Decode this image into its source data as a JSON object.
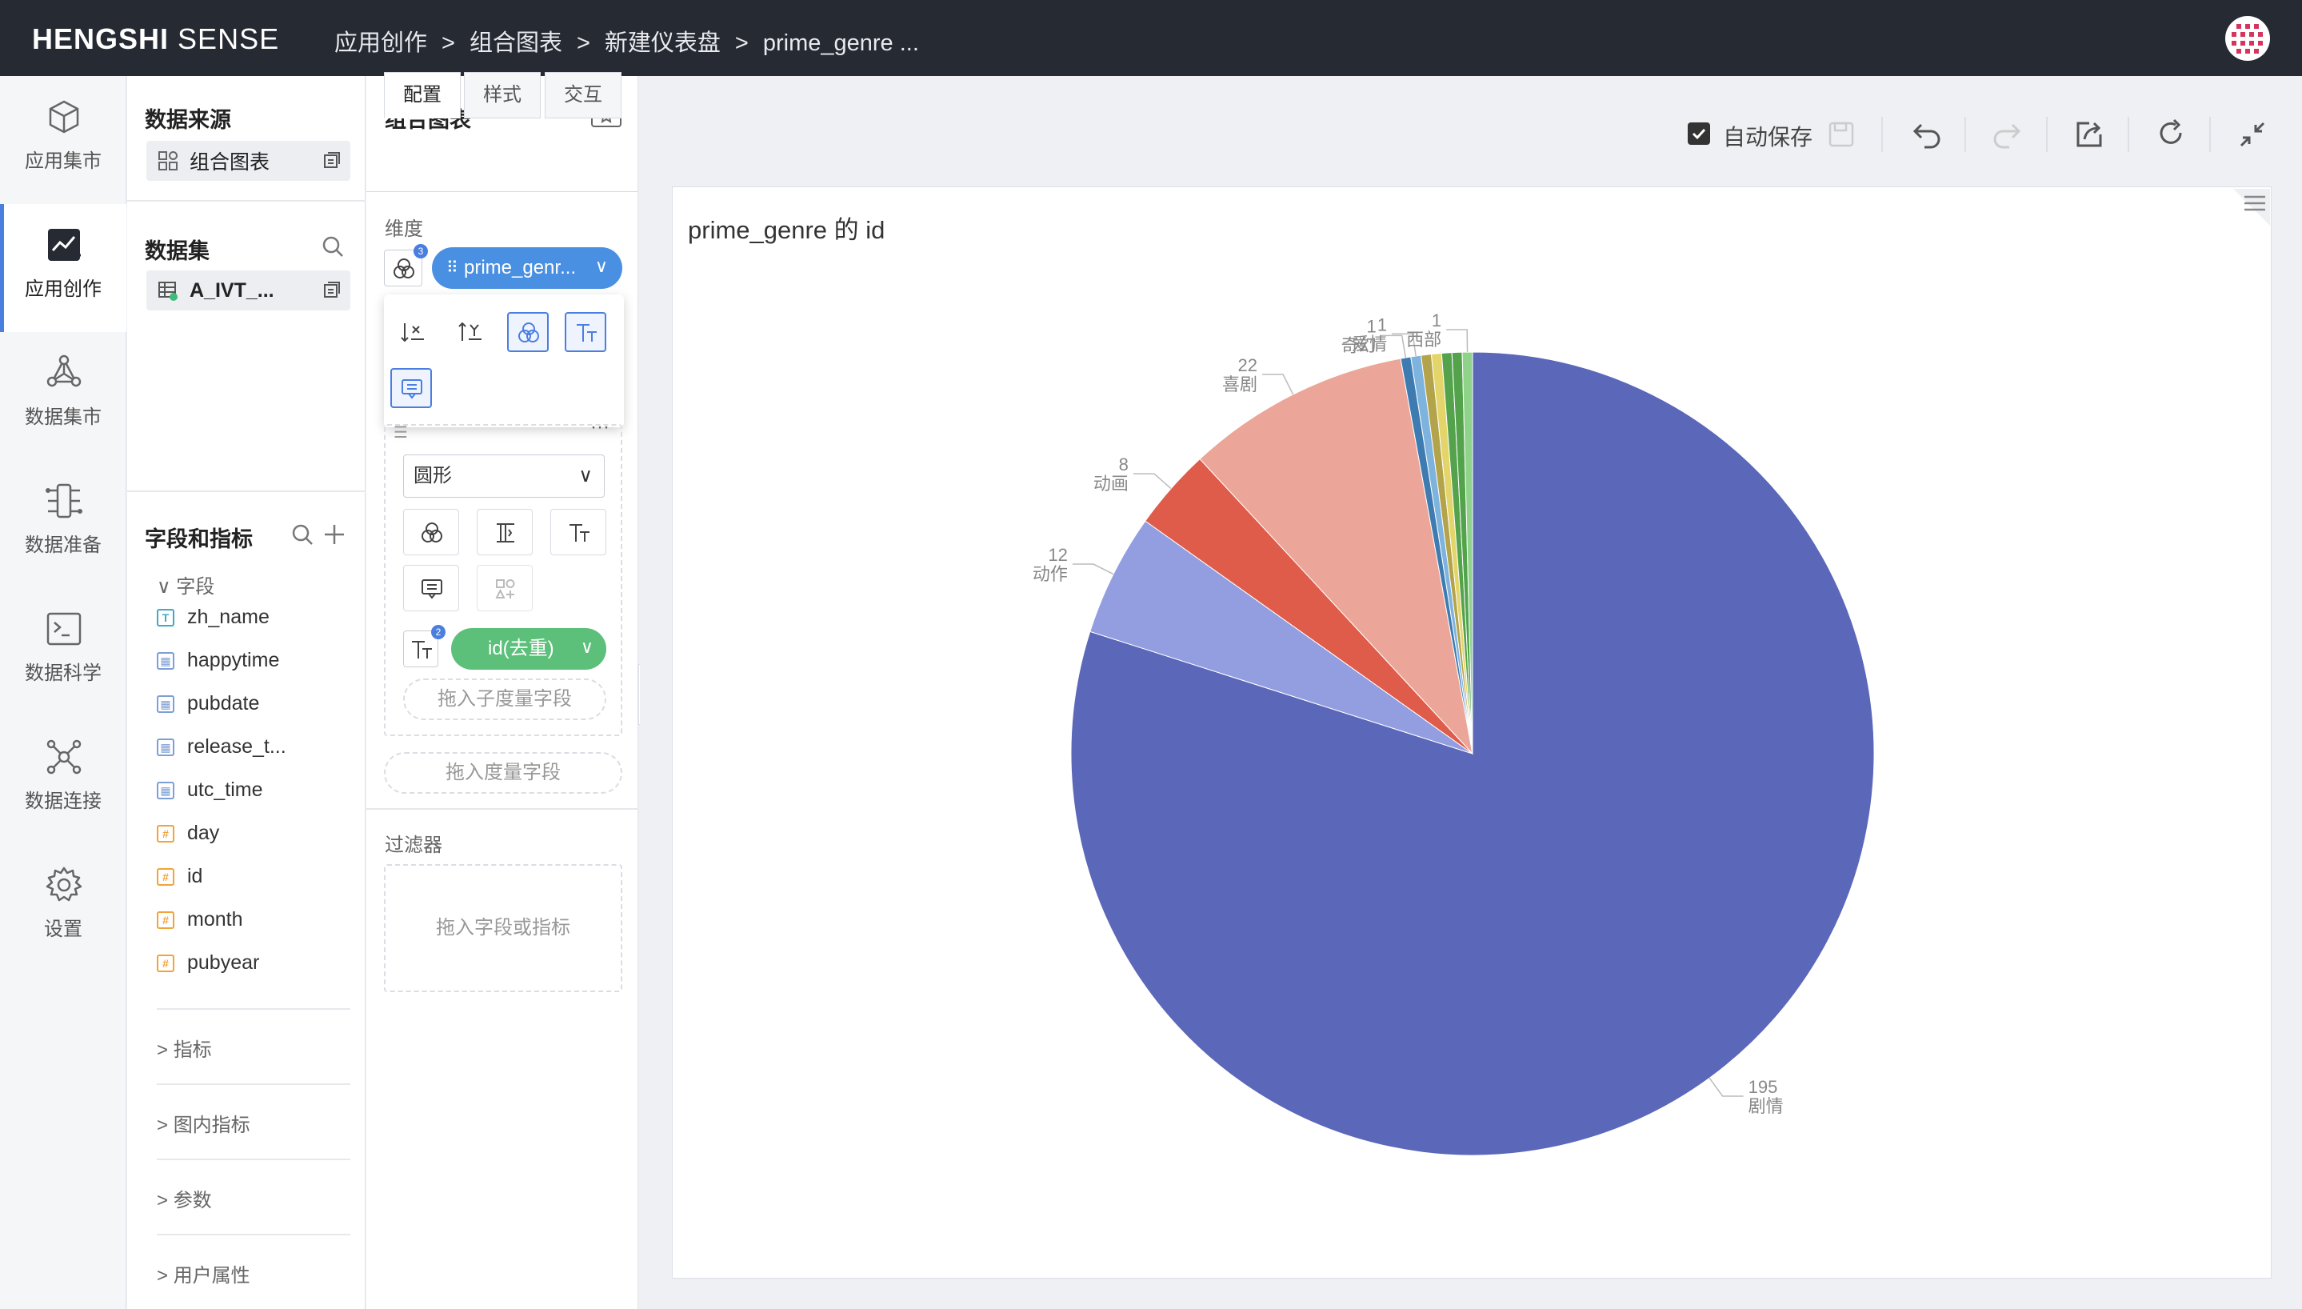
{
  "topbar": {
    "logo_bold": "HENGSHI",
    "logo_light": "SENSE",
    "breadcrumbs": [
      "应用创作",
      "组合图表",
      "新建仪表盘",
      "prime_genre ..."
    ],
    "separator": ">"
  },
  "leftnav": {
    "items": [
      {
        "label": "应用集市",
        "icon": "cube-icon"
      },
      {
        "label": "应用创作",
        "icon": "chart-create-icon",
        "active": true
      },
      {
        "label": "数据集市",
        "icon": "hexagon-network-icon"
      },
      {
        "label": "数据准备",
        "icon": "data-prep-icon"
      },
      {
        "label": "数据科学",
        "icon": "terminal-icon"
      },
      {
        "label": "数据连接",
        "icon": "connection-icon"
      },
      {
        "label": "设置",
        "icon": "gear-icon"
      }
    ]
  },
  "panel1": {
    "source_title": "数据来源",
    "source_chip": "组合图表",
    "dataset_title": "数据集",
    "dataset_chip": "A_IVT_...",
    "fields_title": "字段和指标",
    "field_group": "字段",
    "fields": [
      {
        "name": "zh_name",
        "type": "T"
      },
      {
        "name": "happytime",
        "type": "date"
      },
      {
        "name": "pubdate",
        "type": "date"
      },
      {
        "name": "release_t...",
        "type": "date"
      },
      {
        "name": "utc_time",
        "type": "date"
      },
      {
        "name": "day",
        "type": "#"
      },
      {
        "name": "id",
        "type": "#"
      },
      {
        "name": "month",
        "type": "#"
      },
      {
        "name": "pubyear",
        "type": "#"
      }
    ],
    "groups": [
      "指标",
      "图内指标",
      "参数",
      "用户属性"
    ]
  },
  "panel2": {
    "title": "组合图表",
    "tabs": [
      "配置",
      "样式",
      "交互"
    ],
    "dimension_label": "维度",
    "dimension_pill": "prime_genr...",
    "dimension_badge": "3",
    "shape_select": "圆形",
    "measure_badge": "2",
    "measure_pill": "id(去重)",
    "drop_sub_measure": "拖入子度量字段",
    "drop_measure": "拖入度量字段",
    "filter_label": "过滤器",
    "filter_drop": "拖入字段或指标"
  },
  "toolbar": {
    "autosave_label": "自动保存",
    "autosave_checked": true
  },
  "colors": {
    "accent": "#4a7fe0",
    "pill_blue": "#4a90e2",
    "pill_green": "#5cc07a",
    "topbar": "#262a33"
  },
  "chart_data": {
    "type": "pie",
    "title": "prime_genre 的 id",
    "slices": [
      {
        "label": "剧情",
        "value": 195,
        "color": "#5b67b8"
      },
      {
        "label": "动作",
        "value": 12,
        "color": "#929ee0"
      },
      {
        "label": "动画",
        "value": 8,
        "color": "#e05c4a"
      },
      {
        "label": "喜剧",
        "value": 22,
        "color": "#eba699"
      },
      {
        "label": "奇幻",
        "value": 1,
        "color": "#3e7bb0"
      },
      {
        "label": "爱情",
        "value": 1,
        "color": "#7db3dd"
      },
      {
        "label": "",
        "value": 1,
        "color": "#b3a34a"
      },
      {
        "label": "",
        "value": 1,
        "color": "#e3d56a"
      },
      {
        "label": "",
        "value": 1,
        "color": "#54a34c"
      },
      {
        "label": "",
        "value": 1,
        "color": "#54a34c"
      },
      {
        "label": "西部",
        "value": 1,
        "color": "#8fd38a"
      }
    ]
  }
}
